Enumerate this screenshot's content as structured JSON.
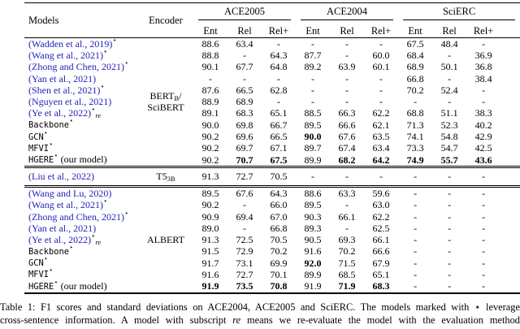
{
  "colors": {
    "citation_blue": "#2222b8",
    "rule": "#000000",
    "background": "#ffffff"
  },
  "table": {
    "header": {
      "models": "Models",
      "encoder": "Encoder"
    },
    "datasets": [
      "ACE2005",
      "ACE2004",
      "SciERC"
    ],
    "metric_headers": [
      "Ent",
      "Rel",
      "Rel+"
    ],
    "blocks": [
      {
        "encoder": [
          {
            "t": "BERT"
          },
          {
            "t": "B",
            "sub": true
          },
          {
            "t": "/"
          },
          {
            "br": true
          },
          {
            "t": "SciBERT"
          }
        ],
        "rows": [
          {
            "model": "(Wadden et al., 2019)",
            "cite": true,
            "sup": "⋆",
            "values": [
              "88.6",
              "63.4",
              "-",
              "-",
              "-",
              "-",
              "67.5",
              "48.4",
              "-"
            ],
            "bold": [
              0,
              0,
              0,
              0,
              0,
              0,
              0,
              0,
              0
            ]
          },
          {
            "model": "(Wang et al., 2021)",
            "cite": true,
            "sup": "⋆",
            "values": [
              "88.8",
              "-",
              "64.3",
              "87.7",
              "-",
              "60.0",
              "68.4",
              "-",
              "36.9"
            ],
            "bold": [
              0,
              0,
              0,
              0,
              0,
              0,
              0,
              0,
              0
            ]
          },
          {
            "model": "(Zhong and Chen, 2021)",
            "cite": true,
            "sup": "⋆",
            "values": [
              "90.1",
              "67.7",
              "64.8",
              "89.2",
              "63.9",
              "60.1",
              "68.9",
              "50.1",
              "36.8"
            ],
            "bold": [
              0,
              0,
              0,
              0,
              0,
              0,
              0,
              0,
              0
            ]
          },
          {
            "model": "(Yan et al., 2021)",
            "cite": true,
            "sup": "",
            "values": [
              "-",
              "-",
              "-",
              "-",
              "-",
              "-",
              "66.8",
              "-",
              "38.4"
            ],
            "bold": [
              0,
              0,
              0,
              0,
              0,
              0,
              0,
              0,
              0
            ]
          },
          {
            "model": "(Shen et al., 2021)",
            "cite": true,
            "sup": "⋆",
            "values": [
              "87.6",
              "66.5",
              "62.8",
              "-",
              "-",
              "-",
              "70.2",
              "52.4",
              "-"
            ],
            "bold": [
              0,
              0,
              0,
              0,
              0,
              0,
              0,
              0,
              0
            ]
          },
          {
            "model": "(Nguyen et al., 2021)",
            "cite": true,
            "sup": "",
            "values": [
              "88.9",
              "68.9",
              "-",
              "-",
              "-",
              "-",
              "-",
              "-",
              "-"
            ],
            "bold": [
              0,
              0,
              0,
              0,
              0,
              0,
              0,
              0,
              0
            ]
          },
          {
            "model": "(Ye et al., 2022)",
            "cite": true,
            "sup": "⋆",
            "sub": "re",
            "values": [
              "89.1",
              "68.3",
              "65.1",
              "88.5",
              "66.3",
              "62.2",
              "68.8",
              "51.1",
              "38.3"
            ],
            "bold": [
              0,
              0,
              0,
              0,
              0,
              0,
              0,
              0,
              0
            ]
          },
          {
            "model": "Backbone",
            "tt": true,
            "sup": "⋆",
            "values": [
              "90.0",
              "69.8",
              "66.7",
              "89.5",
              "66.6",
              "62.1",
              "71.3",
              "52.3",
              "40.2"
            ],
            "bold": [
              0,
              0,
              0,
              0,
              0,
              0,
              0,
              0,
              0
            ]
          },
          {
            "model": "GCN",
            "tt": true,
            "sup": "⋆",
            "values": [
              "90.2",
              "69.6",
              "66.5",
              "90.0",
              "67.6",
              "63.5",
              "74.1",
              "54.8",
              "42.9"
            ],
            "bold": [
              0,
              0,
              0,
              1,
              0,
              0,
              0,
              0,
              0
            ]
          },
          {
            "model": "MFVI",
            "tt": true,
            "sup": "⋆",
            "values": [
              "90.2",
              "69.7",
              "67.1",
              "89.7",
              "67.4",
              "63.4",
              "73.3",
              "54.7",
              "42.5"
            ],
            "bold": [
              0,
              0,
              0,
              0,
              0,
              0,
              0,
              0,
              0
            ]
          },
          {
            "model": "HGERE",
            "tt": true,
            "sup": "⋆",
            "after": " (our model)",
            "values": [
              "90.2",
              "70.7",
              "67.5",
              "89.9",
              "68.2",
              "64.2",
              "74.9",
              "55.7",
              "43.6"
            ],
            "bold": [
              0,
              1,
              1,
              0,
              1,
              1,
              1,
              1,
              1
            ]
          }
        ]
      },
      {
        "encoder": [
          {
            "t": "T5"
          },
          {
            "t": "3B",
            "sub": true
          }
        ],
        "rows": [
          {
            "model": "(Liu et al., 2022)",
            "cite": true,
            "sup": "",
            "values": [
              "91.3",
              "72.7",
              "70.5",
              "-",
              "-",
              "-",
              "-",
              "-",
              "-"
            ],
            "bold": [
              0,
              0,
              0,
              0,
              0,
              0,
              0,
              0,
              0
            ]
          }
        ]
      },
      {
        "encoder": [
          {
            "t": "ALBERT"
          }
        ],
        "rows": [
          {
            "model": "(Wang and Lu, 2020)",
            "cite": true,
            "sup": "",
            "values": [
              "89.5",
              "67.6",
              "64.3",
              "88.6",
              "63.3",
              "59.6",
              "-",
              "-",
              "-"
            ],
            "bold": [
              0,
              0,
              0,
              0,
              0,
              0,
              0,
              0,
              0
            ]
          },
          {
            "model": "(Wang et al., 2021)",
            "cite": true,
            "sup": "⋆",
            "values": [
              "90.2",
              "-",
              "66.0",
              "89.5",
              "-",
              "63.0",
              "-",
              "-",
              "-"
            ],
            "bold": [
              0,
              0,
              0,
              0,
              0,
              0,
              0,
              0,
              0
            ]
          },
          {
            "model": "(Zhong and Chen, 2021)",
            "cite": true,
            "sup": "⋆",
            "values": [
              "90.9",
              "69.4",
              "67.0",
              "90.3",
              "66.1",
              "62.2",
              "-",
              "-",
              "-"
            ],
            "bold": [
              0,
              0,
              0,
              0,
              0,
              0,
              0,
              0,
              0
            ]
          },
          {
            "model": "(Yan et al., 2021)",
            "cite": true,
            "sup": "",
            "values": [
              "89.0",
              "-",
              "66.8",
              "89.3",
              "-",
              "62.5",
              "-",
              "-",
              "-"
            ],
            "bold": [
              0,
              0,
              0,
              0,
              0,
              0,
              0,
              0,
              0
            ]
          },
          {
            "model": "(Ye et al., 2022)",
            "cite": true,
            "sup": "⋆",
            "sub": "re",
            "values": [
              "91.3",
              "72.5",
              "70.5",
              "90.5",
              "69.3",
              "66.1",
              "-",
              "-",
              "-"
            ],
            "bold": [
              0,
              0,
              0,
              0,
              0,
              0,
              0,
              0,
              0
            ]
          },
          {
            "model": "Backbone",
            "tt": true,
            "sup": "⋆",
            "values": [
              "91.5",
              "72.9",
              "70.2",
              "91.6",
              "70.2",
              "66.6",
              "-",
              "-",
              "-"
            ],
            "bold": [
              0,
              0,
              0,
              0,
              0,
              0,
              0,
              0,
              0
            ]
          },
          {
            "model": "GCN",
            "tt": true,
            "sup": "⋆",
            "values": [
              "91.7",
              "73.1",
              "69.9",
              "92.0",
              "71.5",
              "67.9",
              "-",
              "-",
              "-"
            ],
            "bold": [
              0,
              0,
              0,
              1,
              0,
              0,
              0,
              0,
              0
            ]
          },
          {
            "model": "MFVI",
            "tt": true,
            "sup": "⋆",
            "values": [
              "91.6",
              "72.7",
              "70.1",
              "89.9",
              "68.5",
              "65.1",
              "-",
              "-",
              "-"
            ],
            "bold": [
              0,
              0,
              0,
              0,
              0,
              0,
              0,
              0,
              0
            ]
          },
          {
            "model": "HGERE",
            "tt": true,
            "sup": "⋆",
            "after": " (our model)",
            "values": [
              "91.9",
              "73.5",
              "70.8",
              "91.9",
              "71.9",
              "68.3",
              "-",
              "-",
              "-"
            ],
            "bold": [
              1,
              1,
              1,
              0,
              1,
              1,
              0,
              0,
              0
            ]
          }
        ]
      }
    ]
  },
  "caption": {
    "line1": "Table 1: F1 scores and standard deviations on ACE2004, ACE2005 and SciERC. The models marked with ⋆ leverage",
    "line2_pre": "cross-sentence information. A model with subscript ",
    "line2_italic": "re",
    "line2_post": " means we re-evaluate the model with the evaluation method"
  }
}
